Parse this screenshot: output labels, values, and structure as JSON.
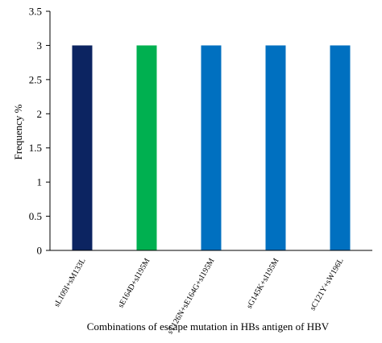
{
  "chart_data": {
    "type": "bar",
    "categories": [
      "sL109I+sM133L",
      "sE164D+sI195M",
      "sT126N+sE164G+sI195M",
      "sG145K+sI195M",
      "sC121Y+sW196L"
    ],
    "values": [
      3,
      3,
      3,
      3,
      3
    ],
    "bar_colors": [
      "#0c2461",
      "#00b050",
      "#0070c0",
      "#0070c0",
      "#0070c0"
    ],
    "ylim": [
      0,
      3.5
    ],
    "yticks": [
      "0",
      "0.5",
      "1",
      "1.5",
      "2",
      "2.5",
      "3",
      "3.5"
    ],
    "ylabel": "Frequency %",
    "xlabel": "Combinations of escape mutation in HBs antigen of HBV",
    "grid": false,
    "legend": "none"
  }
}
